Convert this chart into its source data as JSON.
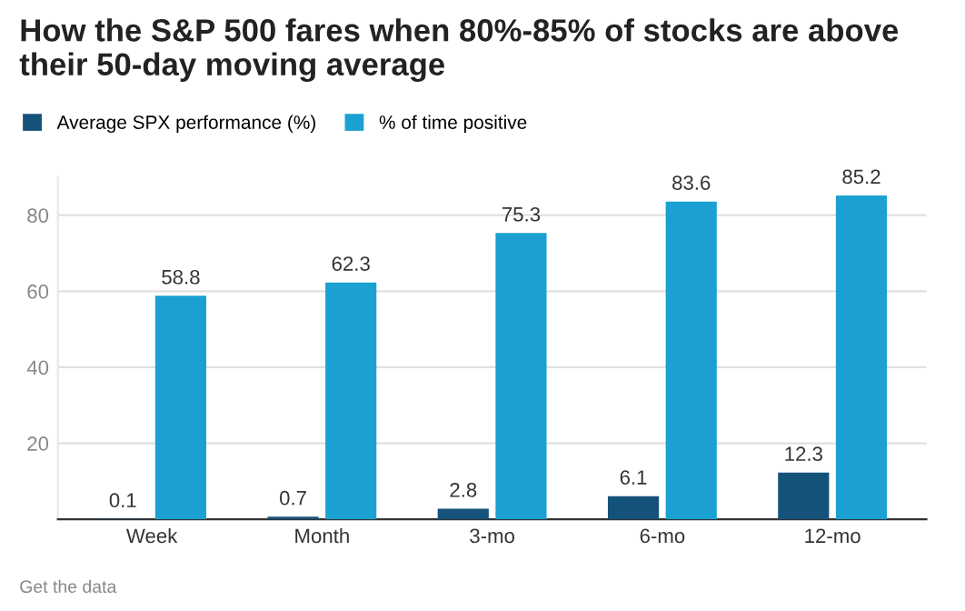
{
  "chart_data": {
    "type": "bar",
    "title": "How the S&P 500 fares when 80%-85% of stocks are above their 50-day moving average",
    "categories": [
      "Week",
      "Month",
      "3-mo",
      "6-mo",
      "12-mo"
    ],
    "series": [
      {
        "name": "Average SPX performance (%)",
        "color": "#15527a",
        "values": [
          0.1,
          0.7,
          2.8,
          6.1,
          12.3
        ]
      },
      {
        "name": "% of time positive",
        "color": "#1ba1d1",
        "values": [
          58.8,
          62.3,
          75.3,
          83.6,
          85.2
        ]
      }
    ],
    "ylim": [
      0,
      90
    ],
    "yticks": [
      20,
      40,
      60,
      80
    ],
    "grid": "y",
    "legend": "top left",
    "data_labels": true,
    "annotations": [
      "Get the data"
    ]
  }
}
